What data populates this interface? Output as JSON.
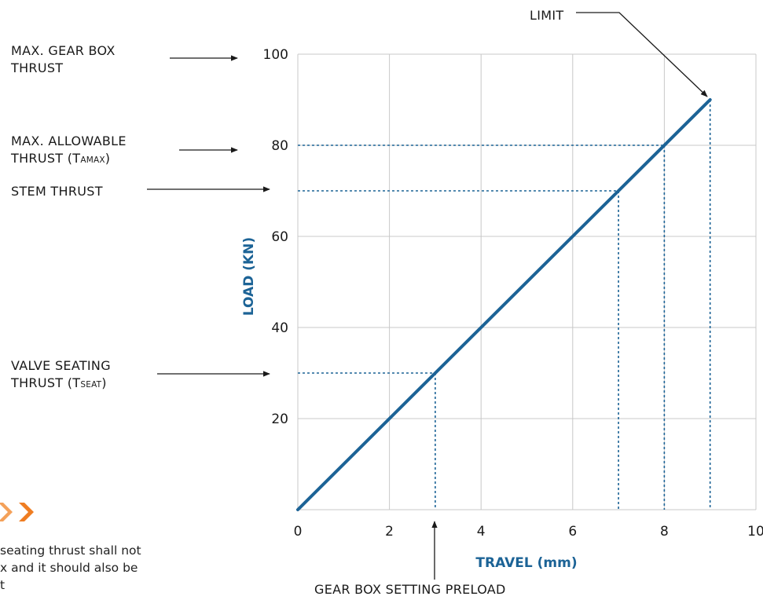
{
  "chart_data": {
    "type": "line",
    "xlabel": "TRAVEL (mm)",
    "ylabel": "LOAD (KN)",
    "xlim": [
      0,
      10
    ],
    "ylim": [
      0,
      100
    ],
    "x_ticks": [
      0,
      2,
      4,
      6,
      8,
      10
    ],
    "y_ticks": [
      20,
      40,
      60,
      80,
      100
    ],
    "x_tick_labels": [
      "0",
      "2",
      "4",
      "6",
      "8",
      "10"
    ],
    "y_tick_labels": [
      "20",
      "40",
      "60",
      "80",
      "100"
    ],
    "grid": true,
    "series": [
      {
        "color": "#1c6396",
        "x": [
          0,
          9
        ],
        "y": [
          0,
          90
        ]
      }
    ],
    "reference_lines": [
      {
        "x": 3,
        "y": 30
      },
      {
        "x": 7,
        "y": 70
      },
      {
        "x": 8,
        "y": 80
      },
      {
        "x": 9,
        "y": 90
      }
    ],
    "colors": {
      "line": "#1c6396",
      "reference": "#1c6396",
      "grid": "#c8c8c8",
      "arrow": "#1a1a1a",
      "accent": "#ef7d22"
    }
  },
  "annotations": {
    "max_gear_box": {
      "line1": "MAX. GEAR BOX",
      "line2": "THRUST"
    },
    "max_allowable": {
      "line1": "MAX. ALLOWABLE",
      "line2_main": "THRUST (T",
      "line2_sub": "AMAX",
      "line2_end": ")"
    },
    "stem_thrust": "STEM THRUST",
    "valve_seating": {
      "line1": "VALVE SEATING",
      "line2_main": "THRUST (T",
      "line2_sub": "SEAT",
      "line2_end": ")"
    },
    "limit": "LIMIT",
    "gear_box_preload": "GEAR BOX SETTING PRELOAD"
  },
  "note": {
    "icon": "double-chevron-right-icon",
    "line1": "seating thrust shall not",
    "line2": "x and it should also be",
    "line3": "t"
  }
}
